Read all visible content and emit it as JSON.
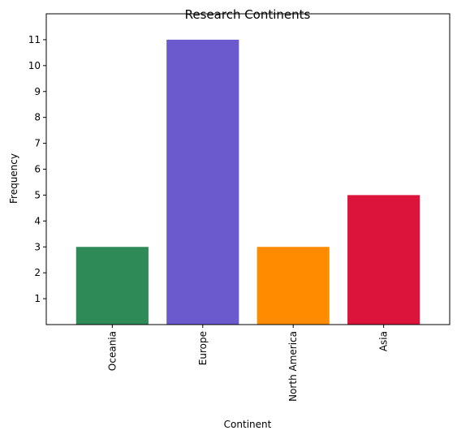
{
  "chart_data": {
    "type": "bar",
    "title": "Research Continents",
    "xlabel": "Continent",
    "ylabel": "Frequency",
    "categories": [
      "Oceania",
      "Europe",
      "North America",
      "Asia"
    ],
    "values": [
      3,
      11,
      3,
      5
    ],
    "colors": [
      "#2e8b57",
      "#6a5acd",
      "#ff8c00",
      "#dc143c"
    ],
    "yticks": [
      1,
      2,
      3,
      4,
      5,
      6,
      7,
      8,
      9,
      10,
      11
    ],
    "ylim": [
      0,
      12
    ],
    "grid": false,
    "legend": "none"
  }
}
